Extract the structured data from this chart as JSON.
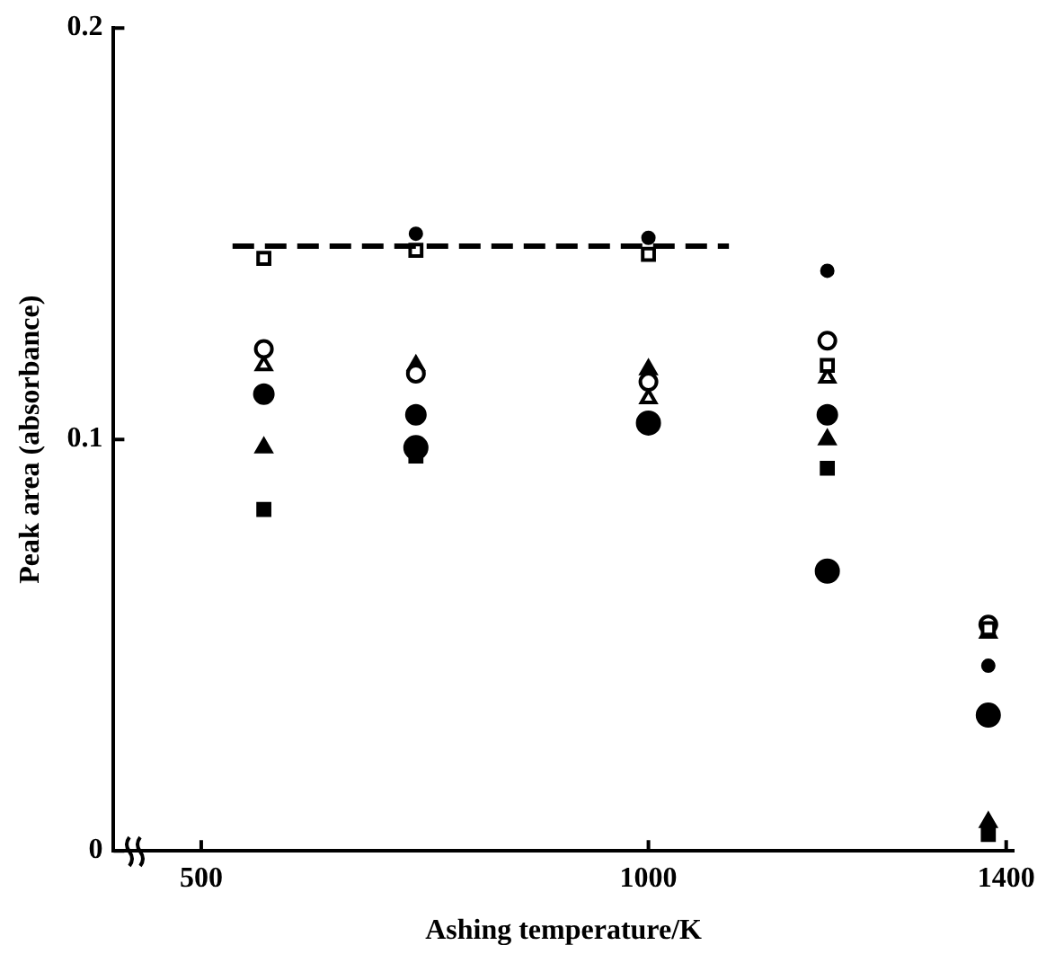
{
  "chart_data": {
    "type": "scatter",
    "xlabel": "Ashing temperature/K",
    "ylabel": "Peak area (absorbance)",
    "xlim": [
      402,
      1408
    ],
    "xticks": [
      500,
      1000,
      1400
    ],
    "ylim": [
      0,
      0.2
    ],
    "yticks": [
      0,
      0.1,
      0.2
    ],
    "grid": false,
    "legend": false,
    "series": [
      {
        "type": "line",
        "line_style": "dashed",
        "marker": "none",
        "color": "#000000",
        "x": [
          535,
          1090
        ],
        "values": [
          0.147,
          0.147
        ]
      },
      {
        "marker": "circle",
        "color": "#000000",
        "x": [
          740,
          1000,
          1200,
          1380
        ],
        "values": [
          0.15,
          0.149,
          0.141,
          0.045
        ]
      },
      {
        "marker": "square",
        "color": "#000000",
        "x": [
          570,
          740,
          1000,
          1200,
          1380
        ],
        "values": [
          0.144,
          0.146,
          0.145,
          0.118,
          0.054
        ]
      },
      {
        "marker": "circle",
        "color": "#000000",
        "x": [
          570,
          740,
          1000,
          1200,
          1380
        ],
        "values": [
          0.122,
          0.116,
          0.114,
          0.124,
          0.055
        ]
      },
      {
        "marker": "triangle",
        "color": "#000000",
        "x": [
          570,
          1000,
          1200,
          1380
        ],
        "values": [
          0.118,
          0.11,
          0.115,
          0.053
        ]
      },
      {
        "marker": "circle",
        "color": "#000000",
        "x": [
          570,
          740,
          1200
        ],
        "values": [
          0.111,
          0.106,
          0.106
        ]
      },
      {
        "marker": "triangle",
        "color": "#000000",
        "x": [
          570,
          740,
          1000,
          1200,
          1380
        ],
        "values": [
          0.098,
          0.118,
          0.117,
          0.1,
          0.007
        ]
      },
      {
        "marker": "square",
        "color": "#000000",
        "x": [
          570,
          740,
          1200,
          1380
        ],
        "values": [
          0.083,
          0.096,
          0.093,
          0.004
        ]
      },
      {
        "marker": "circle",
        "color": "#000000",
        "x": [
          740,
          1000,
          1200,
          1380
        ],
        "values": [
          0.098,
          0.104,
          0.068,
          0.033
        ]
      }
    ]
  }
}
